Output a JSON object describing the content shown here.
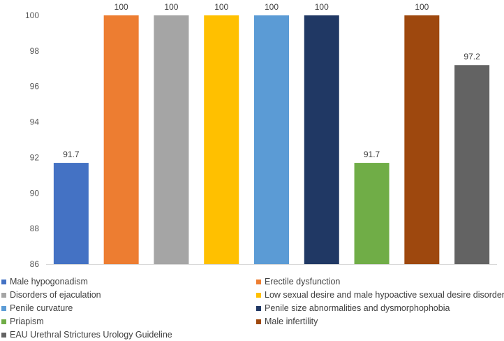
{
  "chart_data": {
    "type": "bar",
    "title": "",
    "xlabel": "",
    "ylabel": "",
    "ylim": [
      86,
      100
    ],
    "yticks": [
      86,
      88,
      90,
      92,
      94,
      96,
      98,
      100
    ],
    "grid": false,
    "legend_position": "bottom",
    "series": [
      {
        "name": "Male hypogonadism",
        "value": 91.7,
        "label": "91.7",
        "color": "#4472C4"
      },
      {
        "name": "Erectile dysfunction",
        "value": 100,
        "label": "100",
        "color": "#ED7D31"
      },
      {
        "name": "Disorders of ejaculation",
        "value": 100,
        "label": "100",
        "color": "#A5A5A5"
      },
      {
        "name": "Low sexual desire and male hypoactive sexual desire disorder",
        "value": 100,
        "label": "100",
        "color": "#FFC000"
      },
      {
        "name": "Penile curvature",
        "value": 100,
        "label": "100",
        "color": "#5B9BD5"
      },
      {
        "name": "Penile size abnormalities and dysmorphophobia",
        "value": 100,
        "label": "100",
        "color": "#203864"
      },
      {
        "name": "Priapism",
        "value": 91.7,
        "label": "91.7",
        "color": "#70AD47"
      },
      {
        "name": "Male infertility",
        "value": 100,
        "label": "100",
        "color": "#9E480E"
      },
      {
        "name": "EAU Urethral Strictures Urology Guideline",
        "value": 97.2,
        "label": "97.2",
        "color": "#636363"
      }
    ]
  }
}
